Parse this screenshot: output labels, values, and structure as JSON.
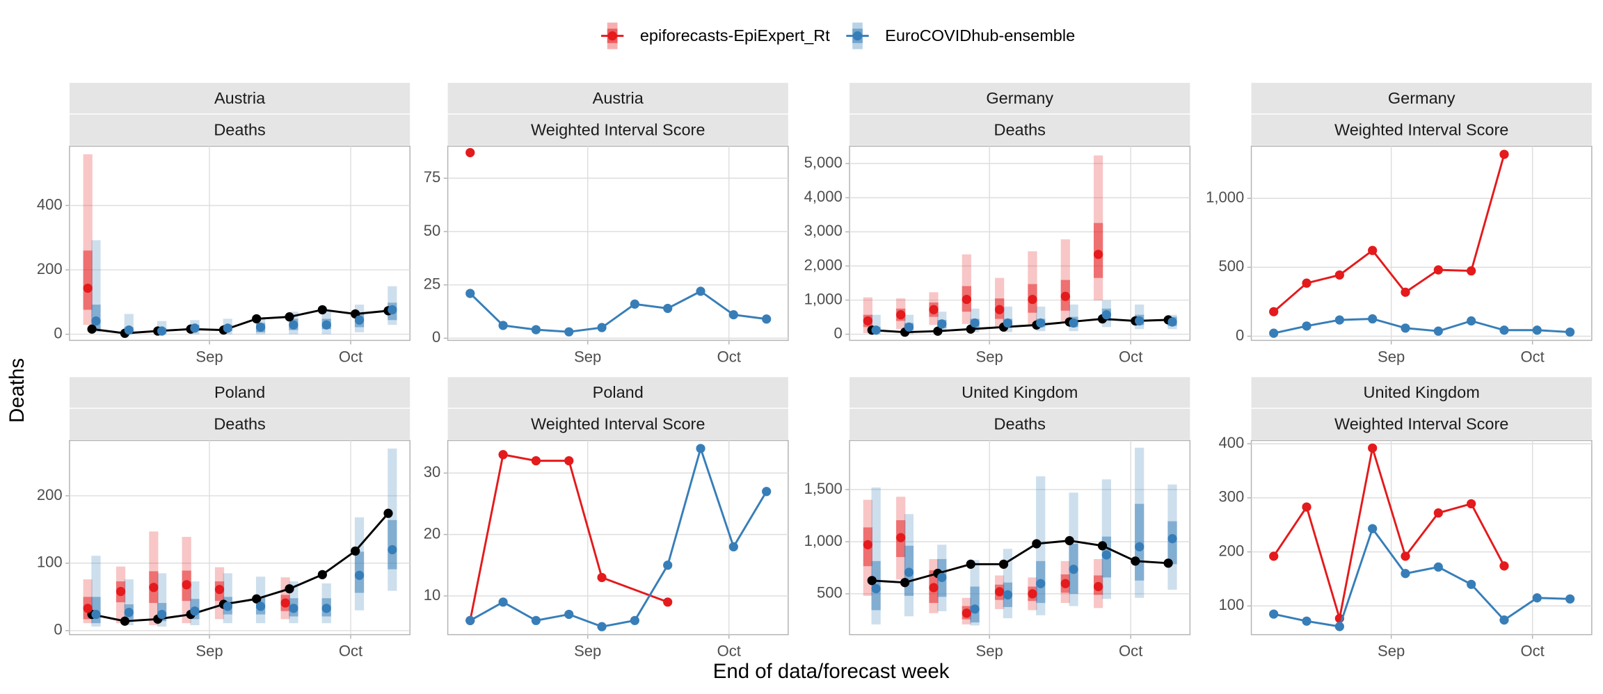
{
  "x_label": "End of data/forecast week",
  "y_label": "Deaths",
  "chart_data": [
    {
      "type": "forecast",
      "title": "Austria",
      "subtitle": "Deaths",
      "x": [
        1,
        2,
        3,
        4,
        5,
        6,
        7,
        8,
        9,
        10
      ],
      "xlim": [
        0.32,
        10.66
      ],
      "xticks": [
        {
          "value": 4.57,
          "label": "Sep"
        },
        {
          "value": 8.86,
          "label": "Oct"
        }
      ],
      "ylim": [
        -19,
        584
      ],
      "yticks": [
        0,
        200,
        400
      ],
      "truth": {
        "color": "#000000",
        "values": [
          16,
          3,
          10,
          16,
          13,
          48,
          54,
          76,
          63,
          73
        ]
      },
      "series": [
        {
          "name": "epiforecasts-EpiExpert_Rt",
          "color": "#e41a1c",
          "values": [
            143,
            null,
            null,
            null,
            null,
            null,
            null,
            null,
            null,
            null
          ],
          "lower50": [
            76,
            null,
            null,
            null,
            null,
            null,
            null,
            null,
            null,
            null
          ],
          "upper50": [
            260,
            null,
            null,
            null,
            null,
            null,
            null,
            null,
            null,
            null
          ],
          "lower90": [
            29,
            null,
            null,
            null,
            null,
            null,
            null,
            null,
            null,
            null
          ],
          "upper90": [
            559,
            null,
            null,
            null,
            null,
            null,
            null,
            null,
            null,
            null
          ]
        },
        {
          "name": "EuroCOVIDhub-ensemble",
          "color": "#377eb8",
          "values": [
            41,
            13,
            10,
            19,
            19,
            22,
            29,
            29,
            44,
            76
          ],
          "lower50": [
            16,
            3,
            3,
            10,
            10,
            6,
            13,
            16,
            22,
            44
          ],
          "upper50": [
            92,
            22,
            19,
            29,
            29,
            35,
            48,
            48,
            67,
            98
          ],
          "lower90": [
            6,
            0,
            0,
            0,
            0,
            0,
            0,
            0,
            6,
            29
          ],
          "upper90": [
            292,
            63,
            41,
            44,
            48,
            51,
            70,
            70,
            92,
            149
          ]
        }
      ]
    },
    {
      "type": "line",
      "title": "Austria",
      "subtitle": "Weighted Interval Score",
      "x": [
        1,
        2,
        3,
        4,
        5,
        6,
        7,
        8,
        9,
        10
      ],
      "xlim": [
        0.32,
        10.66
      ],
      "xticks": [
        {
          "value": 4.57,
          "label": "Sep"
        },
        {
          "value": 8.86,
          "label": "Oct"
        }
      ],
      "ylim": [
        -1,
        90
      ],
      "yticks": [
        0,
        25,
        50,
        75
      ],
      "series": [
        {
          "name": "epiforecasts-EpiExpert_Rt",
          "color": "#e41a1c",
          "values": [
            87,
            null,
            null,
            null,
            null,
            null,
            null,
            null,
            null,
            null
          ]
        },
        {
          "name": "EuroCOVIDhub-ensemble",
          "color": "#377eb8",
          "values": [
            21,
            6,
            4,
            3,
            5,
            16,
            14,
            22,
            11,
            9
          ]
        }
      ]
    },
    {
      "type": "forecast",
      "title": "Germany",
      "subtitle": "Deaths",
      "x": [
        1,
        2,
        3,
        4,
        5,
        6,
        7,
        8,
        9,
        10
      ],
      "xlim": [
        0.32,
        10.66
      ],
      "xticks": [
        {
          "value": 4.57,
          "label": "Sep"
        },
        {
          "value": 8.86,
          "label": "Oct"
        }
      ],
      "ylim": [
        -180,
        5510
      ],
      "yticks": [
        0,
        {
          "value": 1000,
          "label": "1,000"
        },
        {
          "value": 2000,
          "label": "2,000"
        },
        {
          "value": 3000,
          "label": "3,000"
        },
        {
          "value": 4000,
          "label": "4,000"
        },
        {
          "value": 5000,
          "label": "5,000"
        }
      ],
      "truth": {
        "color": "#000000",
        "values": [
          120,
          60,
          90,
          150,
          210,
          270,
          360,
          450,
          390,
          420
        ]
      },
      "series": [
        {
          "name": "epiforecasts-EpiExpert_Rt",
          "color": "#e41a1c",
          "values": [
            390,
            570,
            720,
            1020,
            720,
            1020,
            1110,
            2340,
            null,
            null
          ],
          "lower50": [
            210,
            390,
            510,
            660,
            450,
            630,
            690,
            1650,
            null,
            null
          ],
          "upper50": [
            570,
            750,
            930,
            1410,
            1050,
            1470,
            1590,
            3260,
            null,
            null
          ],
          "lower90": [
            30,
            150,
            270,
            300,
            210,
            270,
            330,
            990,
            null,
            null
          ],
          "upper90": [
            1080,
            1050,
            1230,
            2340,
            1650,
            2430,
            2780,
            5240,
            null,
            null
          ]
        },
        {
          "name": "EuroCOVIDhub-ensemble",
          "color": "#377eb8",
          "values": [
            120,
            210,
            300,
            330,
            330,
            330,
            330,
            570,
            390,
            360
          ],
          "lower50": [
            60,
            120,
            180,
            210,
            210,
            210,
            210,
            390,
            270,
            240
          ],
          "upper50": [
            210,
            330,
            420,
            450,
            450,
            450,
            510,
            750,
            570,
            510
          ],
          "lower90": [
            0,
            0,
            60,
            60,
            60,
            90,
            90,
            210,
            150,
            150
          ],
          "upper90": [
            570,
            570,
            660,
            750,
            810,
            810,
            870,
            990,
            870,
            570
          ]
        }
      ]
    },
    {
      "type": "line",
      "title": "Germany",
      "subtitle": "Weighted Interval Score",
      "x": [
        1,
        2,
        3,
        4,
        5,
        6,
        7,
        8,
        9,
        10
      ],
      "xlim": [
        0.32,
        10.66
      ],
      "xticks": [
        {
          "value": 4.57,
          "label": "Sep"
        },
        {
          "value": 8.86,
          "label": "Oct"
        }
      ],
      "ylim": [
        -30,
        1378
      ],
      "yticks": [
        0,
        500,
        {
          "value": 1000,
          "label": "1,000"
        }
      ],
      "series": [
        {
          "name": "epiforecasts-EpiExpert_Rt",
          "color": "#e41a1c",
          "values": [
            178,
            385,
            444,
            622,
            319,
            481,
            474,
            1319,
            null,
            null
          ]
        },
        {
          "name": "EuroCOVIDhub-ensemble",
          "color": "#377eb8",
          "values": [
            22,
            74,
            118,
            126,
            59,
            37,
            111,
            44,
            44,
            30
          ]
        }
      ]
    },
    {
      "type": "forecast",
      "title": "Poland",
      "subtitle": "Deaths",
      "x": [
        1,
        2,
        3,
        4,
        5,
        6,
        7,
        8,
        9,
        10
      ],
      "xlim": [
        0.32,
        10.66
      ],
      "xticks": [
        {
          "value": 4.57,
          "label": "Sep"
        },
        {
          "value": 8.86,
          "label": "Oct"
        }
      ],
      "ylim": [
        -6,
        282
      ],
      "yticks": [
        0,
        100,
        200
      ],
      "truth": {
        "color": "#000000",
        "values": [
          24,
          14,
          17,
          24,
          39,
          47,
          62,
          83,
          118,
          174
        ]
      },
      "series": [
        {
          "name": "epiforecasts-EpiExpert_Rt",
          "color": "#e41a1c",
          "values": [
            33,
            58,
            64,
            68,
            61,
            null,
            41,
            null,
            null,
            null
          ],
          "lower50": [
            17,
            42,
            41,
            44,
            44,
            null,
            29,
            null,
            null,
            null
          ],
          "upper50": [
            50,
            73,
            88,
            89,
            73,
            null,
            53,
            null,
            null,
            null
          ],
          "lower90": [
            11,
            11,
            8,
            11,
            17,
            null,
            17,
            null,
            null,
            null
          ],
          "upper90": [
            76,
            95,
            147,
            139,
            94,
            null,
            79,
            null,
            null,
            null
          ]
        },
        {
          "name": "EuroCOVIDhub-ensemble",
          "color": "#377eb8",
          "values": [
            24,
            27,
            24,
            29,
            36,
            36,
            33,
            33,
            82,
            120
          ],
          "lower50": [
            11,
            17,
            14,
            17,
            24,
            24,
            21,
            21,
            56,
            91
          ],
          "upper50": [
            50,
            39,
            41,
            47,
            50,
            50,
            48,
            48,
            117,
            164
          ],
          "lower90": [
            6,
            8,
            6,
            8,
            11,
            11,
            11,
            11,
            30,
            59
          ],
          "upper90": [
            111,
            76,
            85,
            73,
            85,
            80,
            73,
            70,
            168,
            270
          ]
        }
      ]
    },
    {
      "type": "line",
      "title": "Poland",
      "subtitle": "Weighted Interval Score",
      "x": [
        1,
        2,
        3,
        4,
        5,
        6,
        7,
        8,
        9,
        10
      ],
      "xlim": [
        0.32,
        10.66
      ],
      "xticks": [
        {
          "value": 4.57,
          "label": "Sep"
        },
        {
          "value": 8.86,
          "label": "Oct"
        }
      ],
      "ylim": [
        3.7,
        35.3
      ],
      "yticks": [
        10,
        20,
        30
      ],
      "series": [
        {
          "name": "epiforecasts-EpiExpert_Rt",
          "color": "#e41a1c",
          "x": [
            1,
            2,
            3,
            4,
            5,
            7
          ],
          "values": [
            6,
            33,
            32,
            32,
            13,
            9
          ]
        },
        {
          "name": "EuroCOVIDhub-ensemble",
          "color": "#377eb8",
          "values": [
            6,
            9,
            6,
            7,
            5,
            6,
            15,
            34,
            18,
            27
          ]
        }
      ]
    },
    {
      "type": "forecast",
      "title": "United Kingdom",
      "subtitle": "Deaths",
      "x": [
        1,
        2,
        3,
        4,
        5,
        6,
        7,
        8,
        9,
        10
      ],
      "xlim": [
        0.32,
        10.66
      ],
      "xticks": [
        {
          "value": 4.57,
          "label": "Sep"
        },
        {
          "value": 8.86,
          "label": "Oct"
        }
      ],
      "ylim": [
        108,
        1971
      ],
      "yticks": [
        500,
        {
          "value": 1000,
          "label": "1,000"
        },
        {
          "value": 1500,
          "label": "1,500"
        }
      ],
      "truth": {
        "color": "#000000",
        "values": [
          627,
          608,
          696,
          784,
          784,
          980,
          1010,
          961,
          814,
          794
        ]
      },
      "series": [
        {
          "name": "epiforecasts-EpiExpert_Rt",
          "color": "#e41a1c",
          "values": [
            971,
            1039,
            559,
            314,
            520,
            500,
            598,
            569,
            null,
            null
          ],
          "lower50": [
            765,
            853,
            412,
            255,
            441,
            431,
            510,
            490,
            null,
            null
          ],
          "upper50": [
            1137,
            1206,
            725,
            382,
            588,
            569,
            686,
            676,
            null,
            null
          ],
          "lower90": [
            480,
            637,
            314,
            206,
            353,
            343,
            412,
            363,
            null,
            null
          ],
          "upper90": [
            1402,
            1431,
            833,
            461,
            676,
            657,
            814,
            833,
            null,
            null
          ]
        },
        {
          "name": "EuroCOVIDhub-ensemble",
          "color": "#377eb8",
          "values": [
            549,
            706,
            657,
            353,
            490,
            598,
            735,
            873,
            951,
            1029
          ],
          "lower50": [
            343,
            480,
            471,
            225,
            373,
            412,
            500,
            657,
            627,
            784
          ],
          "upper50": [
            814,
            961,
            833,
            569,
            608,
            814,
            980,
            1049,
            1363,
            1196
          ],
          "lower90": [
            206,
            284,
            333,
            196,
            265,
            294,
            382,
            451,
            461,
            539
          ],
          "upper90": [
            1520,
            1265,
            971,
            824,
            931,
            1627,
            1471,
            1598,
            1902,
            1549
          ]
        }
      ]
    },
    {
      "type": "line",
      "title": "United Kingdom",
      "subtitle": "Weighted Interval Score",
      "x": [
        1,
        2,
        3,
        4,
        5,
        6,
        7,
        8,
        9,
        10
      ],
      "xlim": [
        0.32,
        10.66
      ],
      "xticks": [
        {
          "value": 4.57,
          "label": "Sep"
        },
        {
          "value": 8.86,
          "label": "Oct"
        }
      ],
      "ylim": [
        47,
        406
      ],
      "yticks": [
        100,
        200,
        300,
        400
      ],
      "series": [
        {
          "name": "epiforecasts-EpiExpert_Rt",
          "color": "#e41a1c",
          "values": [
            192,
            283,
            77,
            392,
            192,
            272,
            289,
            174,
            null,
            null
          ]
        },
        {
          "name": "EuroCOVIDhub-ensemble",
          "color": "#377eb8",
          "values": [
            85,
            72,
            62,
            243,
            160,
            172,
            140,
            74,
            115,
            113
          ]
        }
      ]
    }
  ]
}
